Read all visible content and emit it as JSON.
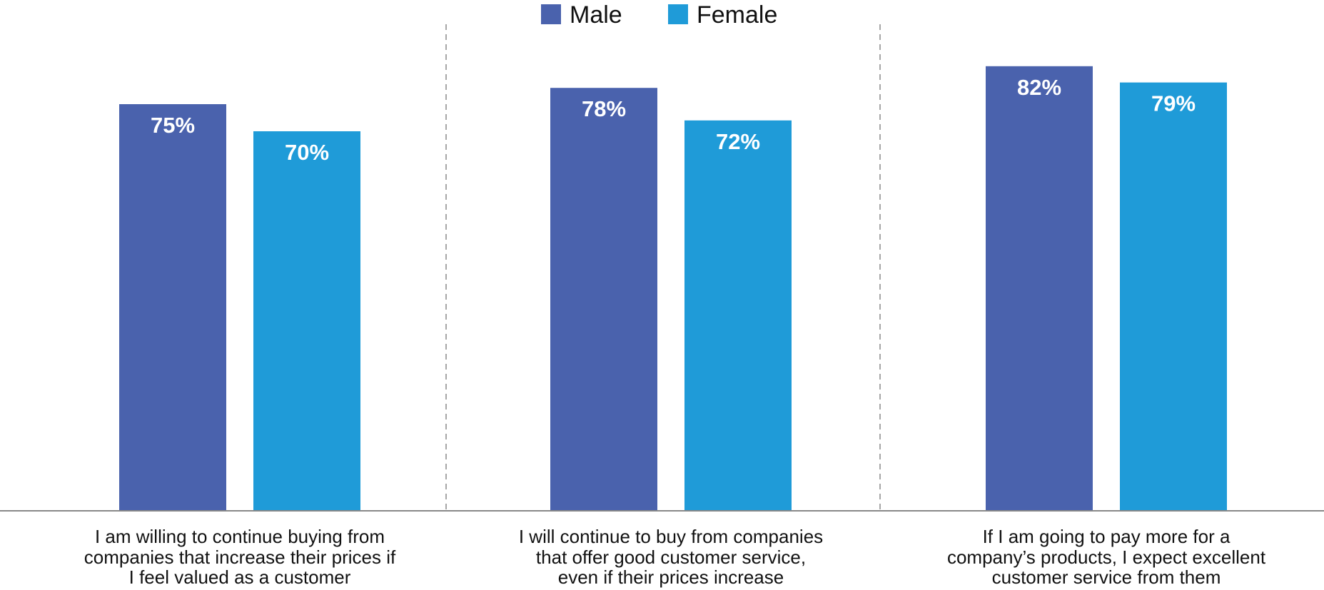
{
  "chart_data": {
    "type": "bar",
    "title": "",
    "xlabel": "",
    "ylabel": "",
    "ylim": [
      0,
      100
    ],
    "grid": false,
    "legend_position": "top-center",
    "categories": [
      [
        "I am willing to continue buying from",
        "companies that increase their prices if",
        "I feel valued as a customer"
      ],
      [
        "I will continue to buy from companies",
        "that offer good customer service,",
        "even if their prices increase"
      ],
      [
        "If I am going to pay more for a",
        "company’s products, I expect excellent",
        "customer service from them"
      ]
    ],
    "series": [
      {
        "name": "Male",
        "color": "#4a62ad",
        "values": [
          75,
          78,
          82
        ],
        "labels": [
          "75%",
          "78%",
          "82%"
        ]
      },
      {
        "name": "Female",
        "color": "#1f9bd8",
        "values": [
          70,
          72,
          79
        ],
        "labels": [
          "70%",
          "72%",
          "79%"
        ]
      }
    ]
  }
}
